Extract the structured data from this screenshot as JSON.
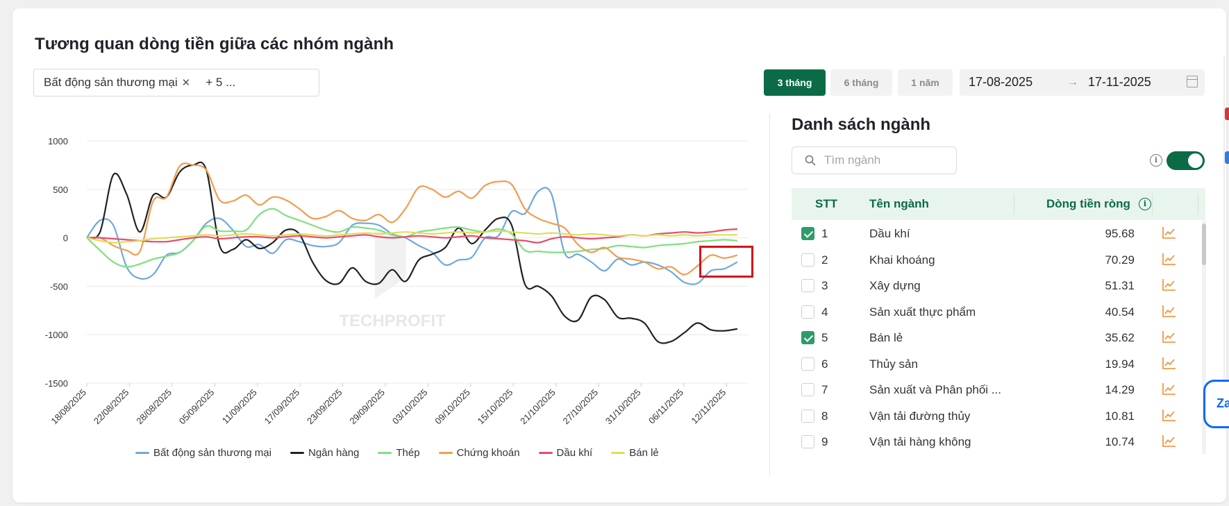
{
  "header": {
    "title": "Tương quan dòng tiền giữa các nhóm ngành"
  },
  "filter": {
    "selected_tag": "Bất động sản thương mại",
    "more_label": "+ 5 ..."
  },
  "periods": [
    {
      "label": "3 tháng",
      "active": true
    },
    {
      "label": "6 tháng",
      "active": false
    },
    {
      "label": "1 năm",
      "active": false
    }
  ],
  "date_range": {
    "from": "17-08-2025",
    "arrow": "→",
    "to": "17-11-2025"
  },
  "watermark": "TECHPROFIT",
  "colors": {
    "brand": "#0b6b46",
    "trend_icon": "#ef8a2b",
    "highlight": "#d6101b"
  },
  "chart_data": {
    "type": "line",
    "ylim": [
      -1500,
      1000
    ],
    "yticks": [
      1000,
      500,
      0,
      -500,
      -1000,
      -1500
    ],
    "x_tick_labels": [
      "18/08/2025",
      "22/08/2025",
      "28/08/2025",
      "05/09/2025",
      "11/09/2025",
      "17/09/2025",
      "23/09/2025",
      "29/09/2025",
      "03/10/2025",
      "09/10/2025",
      "15/10/2025",
      "21/10/2025",
      "27/10/2025",
      "31/10/2025",
      "06/11/2025",
      "12/11/2025"
    ],
    "grid": true,
    "legend_position": "bottom",
    "series": [
      {
        "name": "Bất động sản thương mại",
        "color": "#6fa8dc",
        "values": [
          0,
          180,
          130,
          -300,
          -420,
          -380,
          -180,
          -150,
          -30,
          150,
          200,
          80,
          -90,
          -70,
          -160,
          -20,
          -40,
          -80,
          -90,
          -50,
          130,
          150,
          130,
          40,
          0,
          -80,
          -150,
          -280,
          -230,
          -200,
          0,
          20,
          270,
          250,
          480,
          450,
          -160,
          -170,
          -250,
          -340,
          -220,
          -280,
          -250,
          -280,
          -350,
          -460,
          -470,
          -340,
          -320,
          -250
        ]
      },
      {
        "name": "Ngân hàng",
        "color": "#222222",
        "values": [
          0,
          60,
          650,
          450,
          60,
          440,
          420,
          680,
          750,
          700,
          -80,
          -120,
          -20,
          -110,
          -50,
          80,
          40,
          -250,
          -440,
          -470,
          -310,
          -450,
          -470,
          -330,
          -450,
          -230,
          -170,
          -100,
          100,
          -60,
          80,
          200,
          130,
          -480,
          -500,
          -600,
          -810,
          -850,
          -610,
          -640,
          -820,
          -830,
          -880,
          -1070,
          -1070,
          -980,
          -880,
          -950,
          -960,
          -940
        ]
      },
      {
        "name": "Thép",
        "color": "#7ee07e",
        "values": [
          0,
          -130,
          -250,
          -300,
          -270,
          -220,
          -190,
          -150,
          -30,
          120,
          70,
          70,
          80,
          240,
          300,
          230,
          180,
          130,
          80,
          60,
          110,
          100,
          80,
          30,
          10,
          60,
          80,
          100,
          110,
          80,
          60,
          90,
          40,
          -130,
          -140,
          -150,
          -150,
          -140,
          -120,
          -110,
          -80,
          -90,
          -100,
          -80,
          -70,
          -60,
          -40,
          -30,
          -20,
          -30
        ]
      },
      {
        "name": "Chứng khoán",
        "color": "#f39c4f",
        "values": [
          0,
          0,
          -80,
          -130,
          -140,
          380,
          420,
          740,
          750,
          700,
          390,
          380,
          440,
          340,
          420,
          390,
          300,
          200,
          220,
          280,
          200,
          180,
          240,
          160,
          300,
          520,
          500,
          420,
          480,
          410,
          540,
          580,
          550,
          300,
          200,
          150,
          100,
          -70,
          -150,
          -100,
          -200,
          -220,
          -250,
          -320,
          -300,
          -380,
          -290,
          -180,
          -210,
          -180
        ]
      },
      {
        "name": "Dầu khí",
        "color": "#e74c6c",
        "values": [
          0,
          0,
          -10,
          -20,
          -30,
          -40,
          -40,
          -20,
          0,
          10,
          -10,
          0,
          10,
          10,
          0,
          10,
          20,
          10,
          0,
          10,
          20,
          30,
          10,
          0,
          10,
          20,
          10,
          0,
          10,
          20,
          0,
          -10,
          -20,
          -30,
          -50,
          -10,
          10,
          0,
          -10,
          0,
          10,
          30,
          20,
          40,
          50,
          60,
          50,
          60,
          80,
          90
        ]
      },
      {
        "name": "Bán lẻ",
        "color": "#e0dd5a",
        "values": [
          0,
          -30,
          -50,
          -40,
          -30,
          -10,
          0,
          10,
          20,
          30,
          20,
          30,
          40,
          30,
          20,
          30,
          40,
          30,
          20,
          30,
          40,
          50,
          40,
          50,
          60,
          50,
          40,
          50,
          60,
          50,
          60,
          70,
          60,
          50,
          40,
          50,
          40,
          30,
          40,
          30,
          20,
          30,
          20,
          30,
          20,
          30,
          20,
          30,
          30,
          30
        ]
      }
    ]
  },
  "industry_list": {
    "title": "Danh sách ngành",
    "search_placeholder": "Tìm ngành",
    "columns": {
      "stt": "STT",
      "name": "Tên ngành",
      "flow": "Dòng tiền ròng"
    },
    "rows": [
      {
        "stt": "1",
        "name": "Dầu khí",
        "value": "95.68",
        "checked": true
      },
      {
        "stt": "2",
        "name": "Khai khoáng",
        "value": "70.29",
        "checked": false
      },
      {
        "stt": "3",
        "name": "Xây dựng",
        "value": "51.31",
        "checked": false
      },
      {
        "stt": "4",
        "name": "Sản xuất thực phẩm",
        "value": "40.54",
        "checked": false
      },
      {
        "stt": "5",
        "name": "Bán lẻ",
        "value": "35.62",
        "checked": true
      },
      {
        "stt": "6",
        "name": "Thủy sản",
        "value": "19.94",
        "checked": false
      },
      {
        "stt": "7",
        "name": "Sản xuất và Phân phối ...",
        "value": "14.29",
        "checked": false
      },
      {
        "stt": "8",
        "name": "Vận tải đường thủy",
        "value": "10.81",
        "checked": false
      },
      {
        "stt": "9",
        "name": "Vận tải hàng không",
        "value": "10.74",
        "checked": false
      }
    ]
  },
  "zalo_label": "Za"
}
